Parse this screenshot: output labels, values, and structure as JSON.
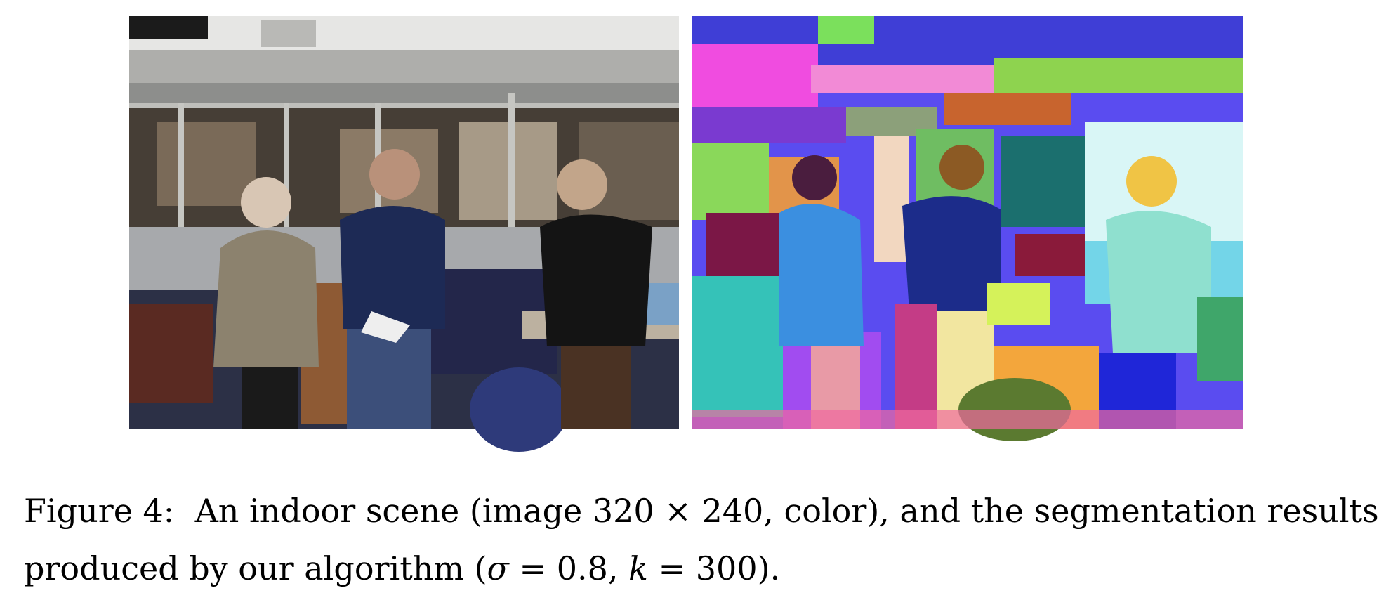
{
  "figure": {
    "number": "Figure 4:",
    "caption_line1": "An indoor scene (image 320 × 240, color), and the segmentation results",
    "caption_line2_a": "produced by our algorithm (",
    "sigma_symbol": "σ",
    "sigma_eq": " = 0.8, ",
    "k_symbol": "k",
    "k_eq": " = 300)."
  },
  "images": {
    "left": "photo-indoor-scene",
    "right": "segmentation-result"
  }
}
